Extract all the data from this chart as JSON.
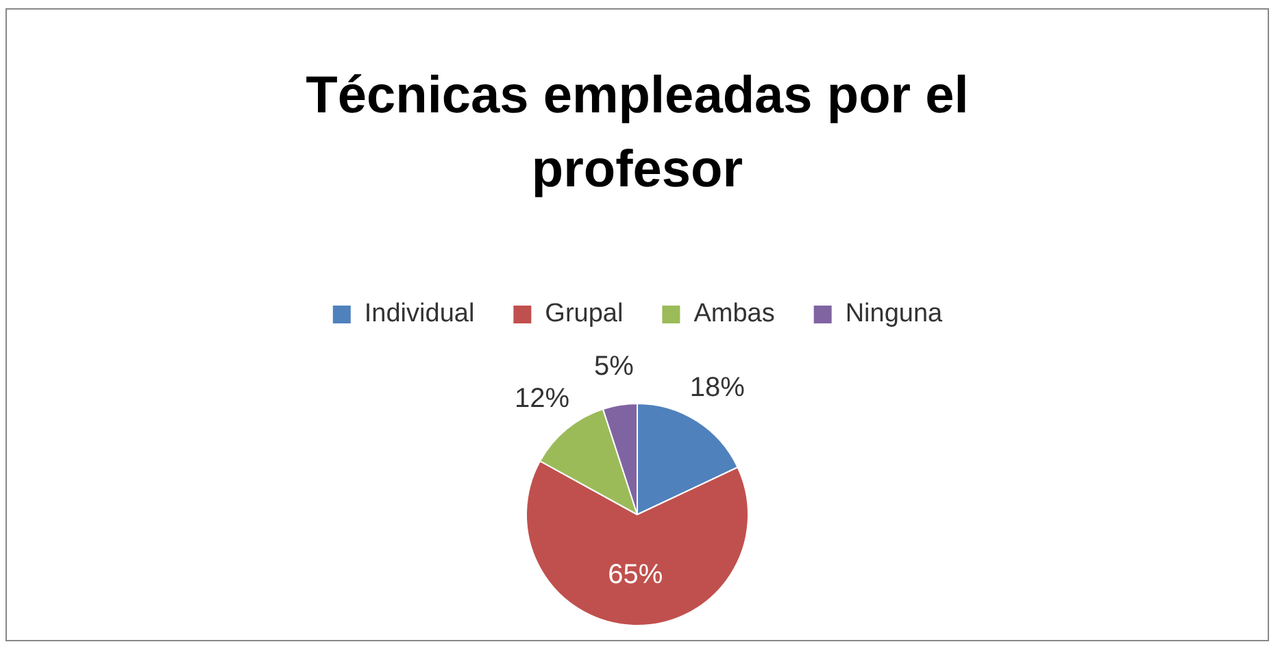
{
  "chart_data": {
    "type": "pie",
    "title": "Técnicas empleadas por el profesor",
    "categories": [
      "Individual",
      "Grupal",
      "Ambas",
      "Ninguna"
    ],
    "values": [
      18,
      65,
      12,
      5
    ],
    "colors": [
      "#4f81bd",
      "#c0504d",
      "#9bbb59",
      "#8064a2"
    ],
    "value_labels": [
      "18%",
      "65%",
      "12%",
      "5%"
    ],
    "legend": "top"
  }
}
